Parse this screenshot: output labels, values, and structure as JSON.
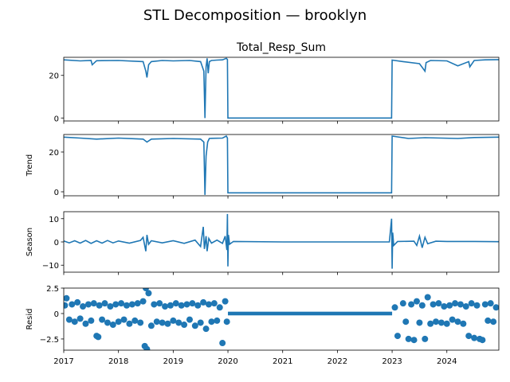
{
  "figure_title": "STL Decomposition — brooklyn",
  "x_tick_labels": [
    "2017",
    "2018",
    "2019",
    "2020",
    "2021",
    "2022",
    "2023",
    "2024"
  ],
  "colors": {
    "series": "#1f77b4",
    "axes": "#000000",
    "background": "#ffffff"
  },
  "chart_data": [
    {
      "type": "line",
      "title": "Total_Resp_Sum",
      "ylabel": "",
      "xlim": [
        2017.0,
        2024.95
      ],
      "ylim": [
        -1.4,
        28.5
      ],
      "yticks": [
        0,
        20
      ],
      "grid": false,
      "series": [
        {
          "x": [
            2017.0,
            2017.3,
            2017.5,
            2017.52,
            2017.6,
            2018.0,
            2018.45,
            2018.5,
            2018.52,
            2018.55,
            2018.6,
            2018.8,
            2019.0,
            2019.3,
            2019.5,
            2019.56,
            2019.58,
            2019.6,
            2019.62,
            2019.64,
            2019.66,
            2019.7,
            2019.8,
            2019.9,
            2019.97,
            2019.99,
            2020.0,
            2021.0,
            2022.0,
            2022.99,
            2023.0,
            2023.2,
            2023.5,
            2023.6,
            2023.62,
            2023.7,
            2024.0,
            2024.2,
            2024.4,
            2024.42,
            2024.5,
            2024.7,
            2024.95
          ],
          "y": [
            27.3,
            26.8,
            27.0,
            25.0,
            26.9,
            27.0,
            26.5,
            22.0,
            19.0,
            25.0,
            26.5,
            27.0,
            26.8,
            27.0,
            26.5,
            22.0,
            0.0,
            24.0,
            28.0,
            21.0,
            26.5,
            27.0,
            27.2,
            27.3,
            28.0,
            27.5,
            0.0,
            0.0,
            0.0,
            0.0,
            27.2,
            26.5,
            25.5,
            22.0,
            26.0,
            27.0,
            26.8,
            24.5,
            26.5,
            24.0,
            27.0,
            27.3,
            27.4
          ]
        }
      ]
    },
    {
      "type": "line",
      "title": "",
      "ylabel": "Trend",
      "xlim": [
        2017.0,
        2024.95
      ],
      "ylim": [
        -2.0,
        28.8
      ],
      "yticks": [
        0,
        20
      ],
      "grid": false,
      "series": [
        {
          "x": [
            2017.0,
            2017.3,
            2017.6,
            2018.0,
            2018.45,
            2018.52,
            2018.6,
            2019.0,
            2019.5,
            2019.56,
            2019.58,
            2019.6,
            2019.63,
            2019.66,
            2019.7,
            2019.9,
            2019.97,
            2019.99,
            2020.0,
            2021.0,
            2022.0,
            2022.99,
            2023.0,
            2023.3,
            2023.6,
            2023.9,
            2024.2,
            2024.5,
            2024.95
          ],
          "y": [
            27.5,
            27.0,
            26.5,
            27.0,
            26.5,
            25.0,
            26.5,
            26.8,
            26.5,
            25.0,
            -1.5,
            18.0,
            25.0,
            26.8,
            26.9,
            27.0,
            28.0,
            27.0,
            -0.5,
            -0.5,
            -0.5,
            -0.5,
            28.0,
            26.8,
            27.2,
            27.0,
            26.8,
            27.3,
            27.5
          ]
        }
      ]
    },
    {
      "type": "line",
      "title": "",
      "ylabel": "Season",
      "xlim": [
        2017.0,
        2024.95
      ],
      "ylim": [
        -13.0,
        13.0
      ],
      "yticks": [
        -10,
        0,
        10
      ],
      "grid": false,
      "series": [
        {
          "x": [
            2017.0,
            2017.1,
            2017.2,
            2017.3,
            2017.4,
            2017.5,
            2017.6,
            2017.7,
            2017.8,
            2017.9,
            2018.0,
            2018.2,
            2018.4,
            2018.45,
            2018.5,
            2018.52,
            2018.55,
            2018.6,
            2018.8,
            2019.0,
            2019.2,
            2019.4,
            2019.5,
            2019.55,
            2019.57,
            2019.6,
            2019.62,
            2019.65,
            2019.7,
            2019.8,
            2019.9,
            2019.95,
            2019.98,
            2019.99,
            2020.0,
            2020.01,
            2020.03,
            2020.1,
            2021.0,
            2022.0,
            2022.95,
            2022.99,
            2023.0,
            2023.01,
            2023.03,
            2023.1,
            2023.4,
            2023.45,
            2023.5,
            2023.55,
            2023.6,
            2023.65,
            2023.8,
            2024.0,
            2024.5,
            2024.95
          ],
          "y": [
            0.4,
            -0.4,
            0.5,
            -0.5,
            0.6,
            -0.6,
            0.5,
            -0.5,
            0.6,
            -0.4,
            0.4,
            -0.5,
            0.6,
            2.0,
            -4.0,
            3.0,
            -1.0,
            0.5,
            -0.4,
            0.5,
            -0.6,
            0.8,
            -2.0,
            6.5,
            -3.0,
            2.5,
            -4.0,
            1.5,
            -0.5,
            0.8,
            -0.6,
            2.5,
            -3.5,
            12.0,
            -10.5,
            3.0,
            -1.0,
            0.2,
            0.0,
            0.0,
            0.0,
            10.0,
            -11.5,
            4.0,
            -1.5,
            0.2,
            0.3,
            -1.5,
            2.5,
            -2.5,
            2.0,
            -0.8,
            0.3,
            0.2,
            0.2,
            0.1
          ]
        }
      ]
    },
    {
      "type": "scatter",
      "title": "",
      "ylabel": "Resid",
      "xlim": [
        2017.0,
        2024.95
      ],
      "ylim": [
        -3.6,
        2.5
      ],
      "yticks": [
        -2.5,
        0.0,
        2.5
      ],
      "grid": false,
      "series": [
        {
          "x": [
            2017.02,
            2017.05,
            2017.1,
            2017.15,
            2017.2,
            2017.25,
            2017.3,
            2017.35,
            2017.4,
            2017.45,
            2017.5,
            2017.55,
            2017.6,
            2017.63,
            2017.65,
            2017.7,
            2017.75,
            2017.8,
            2017.85,
            2017.9,
            2017.95,
            2018.0,
            2018.05,
            2018.1,
            2018.15,
            2018.2,
            2018.25,
            2018.3,
            2018.35,
            2018.4,
            2018.45,
            2018.48,
            2018.5,
            2018.52,
            2018.55,
            2018.6,
            2018.65,
            2018.7,
            2018.75,
            2018.8,
            2018.85,
            2018.9,
            2018.95,
            2019.0,
            2019.05,
            2019.1,
            2019.15,
            2019.2,
            2019.25,
            2019.3,
            2019.35,
            2019.4,
            2019.45,
            2019.5,
            2019.55,
            2019.6,
            2019.65,
            2019.7,
            2019.75,
            2019.8,
            2019.85,
            2019.9,
            2019.95,
            2019.98,
            2023.05,
            2023.1,
            2023.2,
            2023.25,
            2023.3,
            2023.35,
            2023.4,
            2023.45,
            2023.5,
            2023.55,
            2023.6,
            2023.65,
            2023.7,
            2023.75,
            2023.8,
            2023.85,
            2023.9,
            2023.95,
            2024.0,
            2024.05,
            2024.1,
            2024.15,
            2024.2,
            2024.25,
            2024.3,
            2024.35,
            2024.4,
            2024.45,
            2024.5,
            2024.55,
            2024.6,
            2024.65,
            2024.7,
            2024.75,
            2024.8,
            2024.85,
            2024.9
          ],
          "y": [
            0.8,
            1.5,
            -0.6,
            0.9,
            -0.8,
            1.1,
            -0.5,
            0.7,
            -1.0,
            0.9,
            -0.7,
            1.0,
            -2.2,
            -2.3,
            0.8,
            -0.6,
            1.0,
            -0.9,
            0.7,
            -1.1,
            0.9,
            -0.8,
            1.0,
            -0.6,
            0.8,
            -1.0,
            0.9,
            -0.7,
            1.0,
            -0.9,
            1.2,
            -3.2,
            2.5,
            -3.5,
            2.0,
            -1.2,
            0.9,
            -0.8,
            1.0,
            -0.9,
            0.7,
            -1.0,
            0.8,
            -0.7,
            1.0,
            -0.9,
            0.8,
            -1.1,
            0.9,
            -0.6,
            1.0,
            -1.2,
            0.8,
            -0.9,
            1.1,
            -1.5,
            0.9,
            -0.8,
            1.0,
            -0.7,
            0.6,
            -2.9,
            1.2,
            -0.8,
            0.6,
            -2.2,
            1.0,
            -0.8,
            -2.5,
            0.9,
            -2.6,
            1.2,
            -0.9,
            0.8,
            -2.5,
            1.6,
            -1.0,
            0.9,
            -0.8,
            1.0,
            -0.9,
            0.7,
            -1.0,
            0.8,
            -0.6,
            1.0,
            -0.8,
            0.9,
            -1.0,
            0.7,
            -2.2,
            1.0,
            -2.4,
            0.8,
            -2.5,
            -2.6,
            0.9,
            -0.7,
            1.0,
            -0.8,
            0.6
          ]
        },
        {
          "x_range": [
            2020.0,
            2023.0
          ],
          "y": 0.0,
          "note_values": "dense zero residuals"
        }
      ]
    }
  ]
}
